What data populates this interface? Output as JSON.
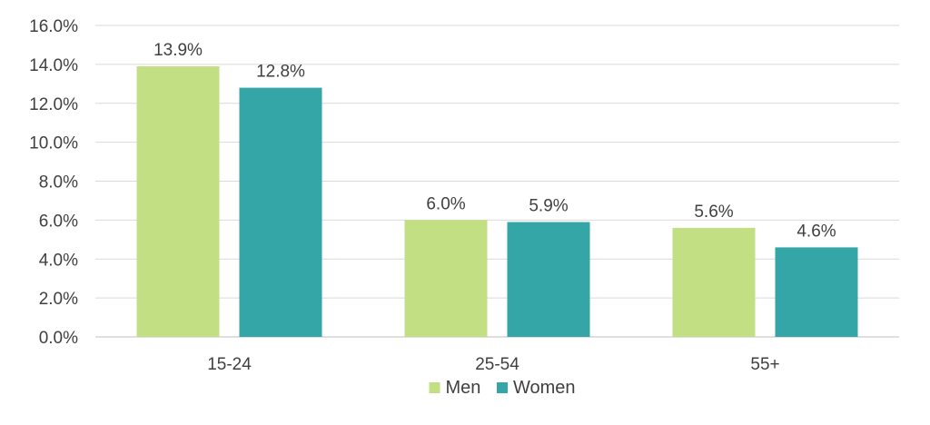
{
  "chart_data": {
    "type": "bar",
    "title": "",
    "xlabel": "",
    "ylabel": "",
    "categories": [
      "15-24",
      "25-54",
      "55+"
    ],
    "series": [
      {
        "name": "Men",
        "color": "#c2df84",
        "values": [
          13.9,
          6.0,
          5.6
        ]
      },
      {
        "name": "Women",
        "color": "#35a6a8",
        "values": [
          12.8,
          5.9,
          4.6
        ]
      }
    ],
    "ylim": [
      0,
      16
    ],
    "ytick_step": 2,
    "value_format": "percent_1dp",
    "grid": true,
    "legend_position": "bottom-center"
  }
}
